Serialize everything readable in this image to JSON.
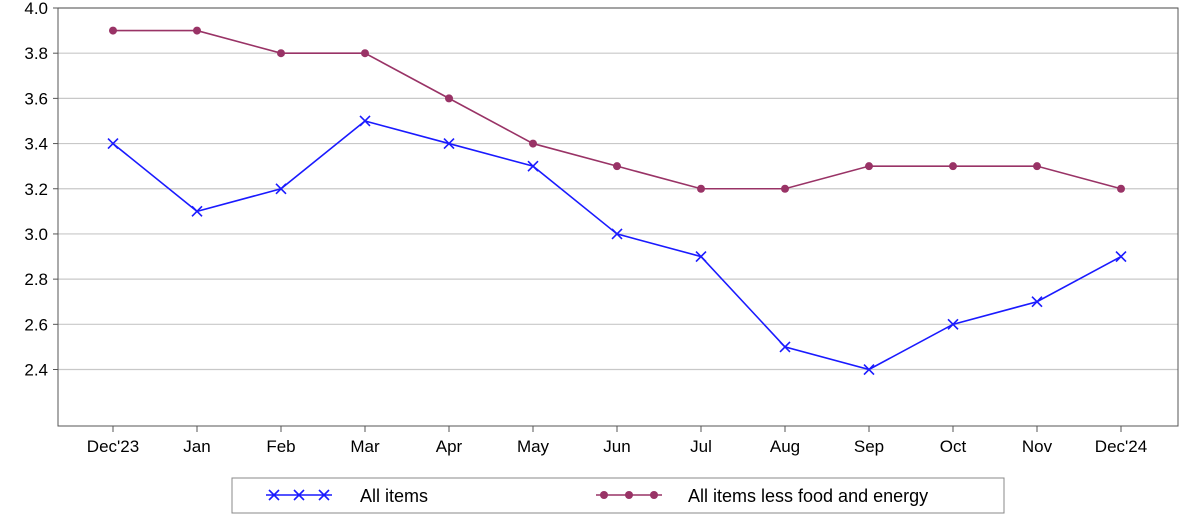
{
  "chart_data": {
    "type": "line",
    "categories": [
      "Dec'23",
      "Jan",
      "Feb",
      "Mar",
      "Apr",
      "May",
      "Jun",
      "Jul",
      "Aug",
      "Sep",
      "Oct",
      "Nov",
      "Dec'24"
    ],
    "ylim": [
      2.15,
      4.0
    ],
    "yticks": [
      "2.4",
      "2.6",
      "2.8",
      "3.0",
      "3.2",
      "3.4",
      "3.6",
      "3.8",
      "4.0"
    ],
    "grid": true,
    "legend_position": "bottom",
    "series": [
      {
        "name": "All items",
        "color": "#1a1aff",
        "marker": "x",
        "values": [
          3.4,
          3.1,
          3.2,
          3.5,
          3.4,
          3.3,
          3.0,
          2.9,
          2.5,
          2.4,
          2.6,
          2.7,
          2.9
        ]
      },
      {
        "name": "All items less food and energy",
        "color": "#993366",
        "marker": "circle",
        "values": [
          3.9,
          3.9,
          3.8,
          3.8,
          3.6,
          3.4,
          3.3,
          3.2,
          3.2,
          3.3,
          3.3,
          3.3,
          3.2
        ]
      }
    ]
  }
}
